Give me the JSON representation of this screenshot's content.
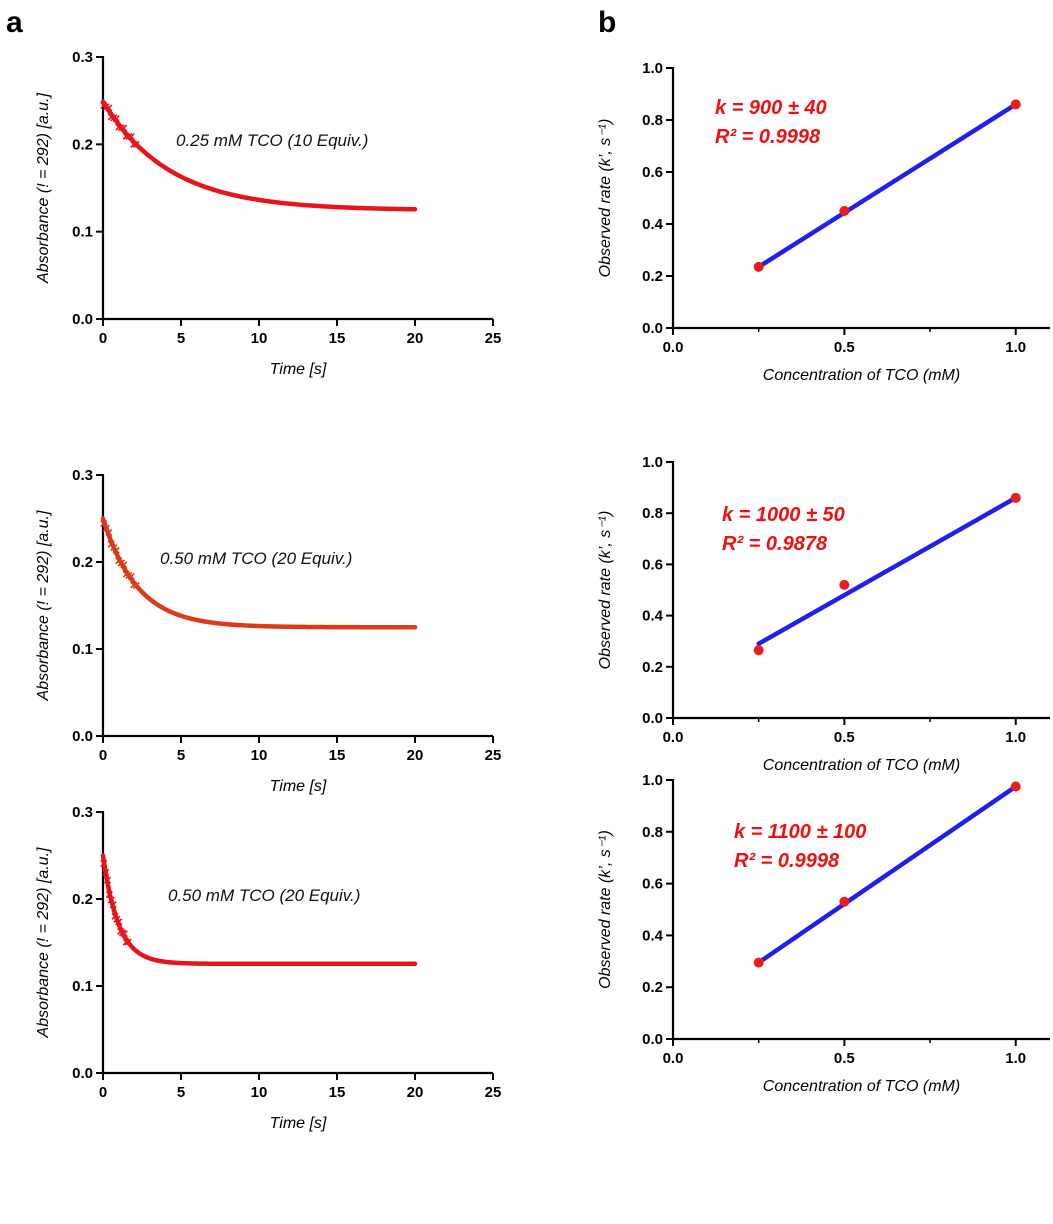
{
  "panels": {
    "a": "a",
    "b": "b"
  },
  "colors": {
    "trace_red": "#e8141c",
    "trace_orange": "#dc3a1a",
    "fit_blue": "#1f1ff0",
    "point_red": "#ee1c1c",
    "annot_red": "#ee1111"
  },
  "chart_data": [
    {
      "type": "line",
      "panel": "a",
      "xlabel": "Time [s]",
      "ylabel": "Absorbance (! = 292) [a.u.]",
      "xlim": [
        0,
        25
      ],
      "ylim": [
        0,
        0.3
      ],
      "xticks": [
        "0",
        "5",
        "10",
        "15",
        "20",
        "25"
      ],
      "yticks": [
        "0.0",
        "0.1",
        "0.2",
        "0.3"
      ],
      "annotation": "0.25 mM TCO (10 Equiv.)",
      "curve": {
        "model": "y = y_inf + a * exp(-k * t)",
        "y_inf": 0.1245,
        "a": 0.1245,
        "k": 0.235,
        "t_range": [
          0,
          20
        ]
      },
      "grid": false
    },
    {
      "type": "line",
      "panel": "a",
      "xlabel": "Time [s]",
      "ylabel": "Absorbance (! = 292) [a.u.]",
      "xlim": [
        0,
        25
      ],
      "ylim": [
        0,
        0.3
      ],
      "xticks": [
        "0",
        "5",
        "10",
        "15",
        "20",
        "25"
      ],
      "yticks": [
        "0.0",
        "0.1",
        "0.2",
        "0.3"
      ],
      "annotation": "0.50 mM TCO (20 Equiv.)",
      "curve": {
        "model": "y = y_inf + a * exp(-k * t)",
        "y_inf": 0.125,
        "a": 0.125,
        "k": 0.45,
        "t_range": [
          0,
          20
        ]
      },
      "grid": false
    },
    {
      "type": "line",
      "panel": "a",
      "xlabel": "Time [s]",
      "ylabel": "Absorbance (! = 292) [a.u.]",
      "xlim": [
        0,
        25
      ],
      "ylim": [
        0,
        0.3
      ],
      "xticks": [
        "0",
        "5",
        "10",
        "15",
        "20",
        "25"
      ],
      "yticks": [
        "0.0",
        "0.1",
        "0.2",
        "0.3"
      ],
      "annotation": "0.50 mM TCO (20 Equiv.)",
      "curve": {
        "model": "y = y_inf + a * exp(-k * t)",
        "y_inf": 0.1255,
        "a": 0.1245,
        "k": 1.0,
        "t_range": [
          0,
          20
        ]
      },
      "grid": false
    },
    {
      "type": "scatter",
      "panel": "b",
      "xlabel": "Concentration of TCO (mM)",
      "ylabel": "Observed rate (k’, s⁻¹)",
      "xlim": [
        0,
        1.1
      ],
      "ylim": [
        0,
        1.0
      ],
      "xticks": [
        "0.0",
        "0.5",
        "1.0"
      ],
      "yticks": [
        "0.0",
        "0.2",
        "0.4",
        "0.6",
        "0.8",
        "1.0"
      ],
      "points": {
        "x": [
          0.25,
          0.5,
          1.0
        ],
        "y": [
          0.235,
          0.45,
          0.86
        ]
      },
      "fit_line": {
        "x": [
          0.25,
          1.0
        ],
        "y": [
          0.235,
          0.86
        ]
      },
      "annotation_k": "k = 900 ± 40",
      "annotation_r2": "R² = 0.9998",
      "grid": false
    },
    {
      "type": "scatter",
      "panel": "b",
      "xlabel": "Concentration of TCO (mM)",
      "ylabel": "Observed rate (k’, s⁻¹)",
      "xlim": [
        0,
        1.1
      ],
      "ylim": [
        0,
        1.0
      ],
      "xticks": [
        "0.0",
        "0.5",
        "1.0"
      ],
      "yticks": [
        "0.0",
        "0.2",
        "0.4",
        "0.6",
        "0.8",
        "1.0"
      ],
      "points": {
        "x": [
          0.25,
          0.5,
          1.0
        ],
        "y": [
          0.265,
          0.52,
          0.86
        ]
      },
      "fit_line": {
        "x": [
          0.25,
          1.0
        ],
        "y": [
          0.29,
          0.86
        ]
      },
      "annotation_k": "k = 1000 ± 50",
      "annotation_r2": "R² = 0.9878",
      "grid": false
    },
    {
      "type": "scatter",
      "panel": "b",
      "xlabel": "Concentration of TCO (mM)",
      "ylabel": "Observed rate (k’, s⁻¹)",
      "xlim": [
        0,
        1.1
      ],
      "ylim": [
        0,
        1.0
      ],
      "xticks": [
        "0.0",
        "0.5",
        "1.0"
      ],
      "yticks": [
        "0.0",
        "0.2",
        "0.4",
        "0.6",
        "0.8",
        "1.0"
      ],
      "points": {
        "x": [
          0.25,
          0.5,
          1.0
        ],
        "y": [
          0.295,
          0.53,
          0.975
        ]
      },
      "fit_line": {
        "x": [
          0.25,
          1.0
        ],
        "y": [
          0.295,
          0.975
        ]
      },
      "annotation_k": "k = 1100 ± 100",
      "annotation_r2": "R² = 0.9998",
      "grid": false
    }
  ]
}
